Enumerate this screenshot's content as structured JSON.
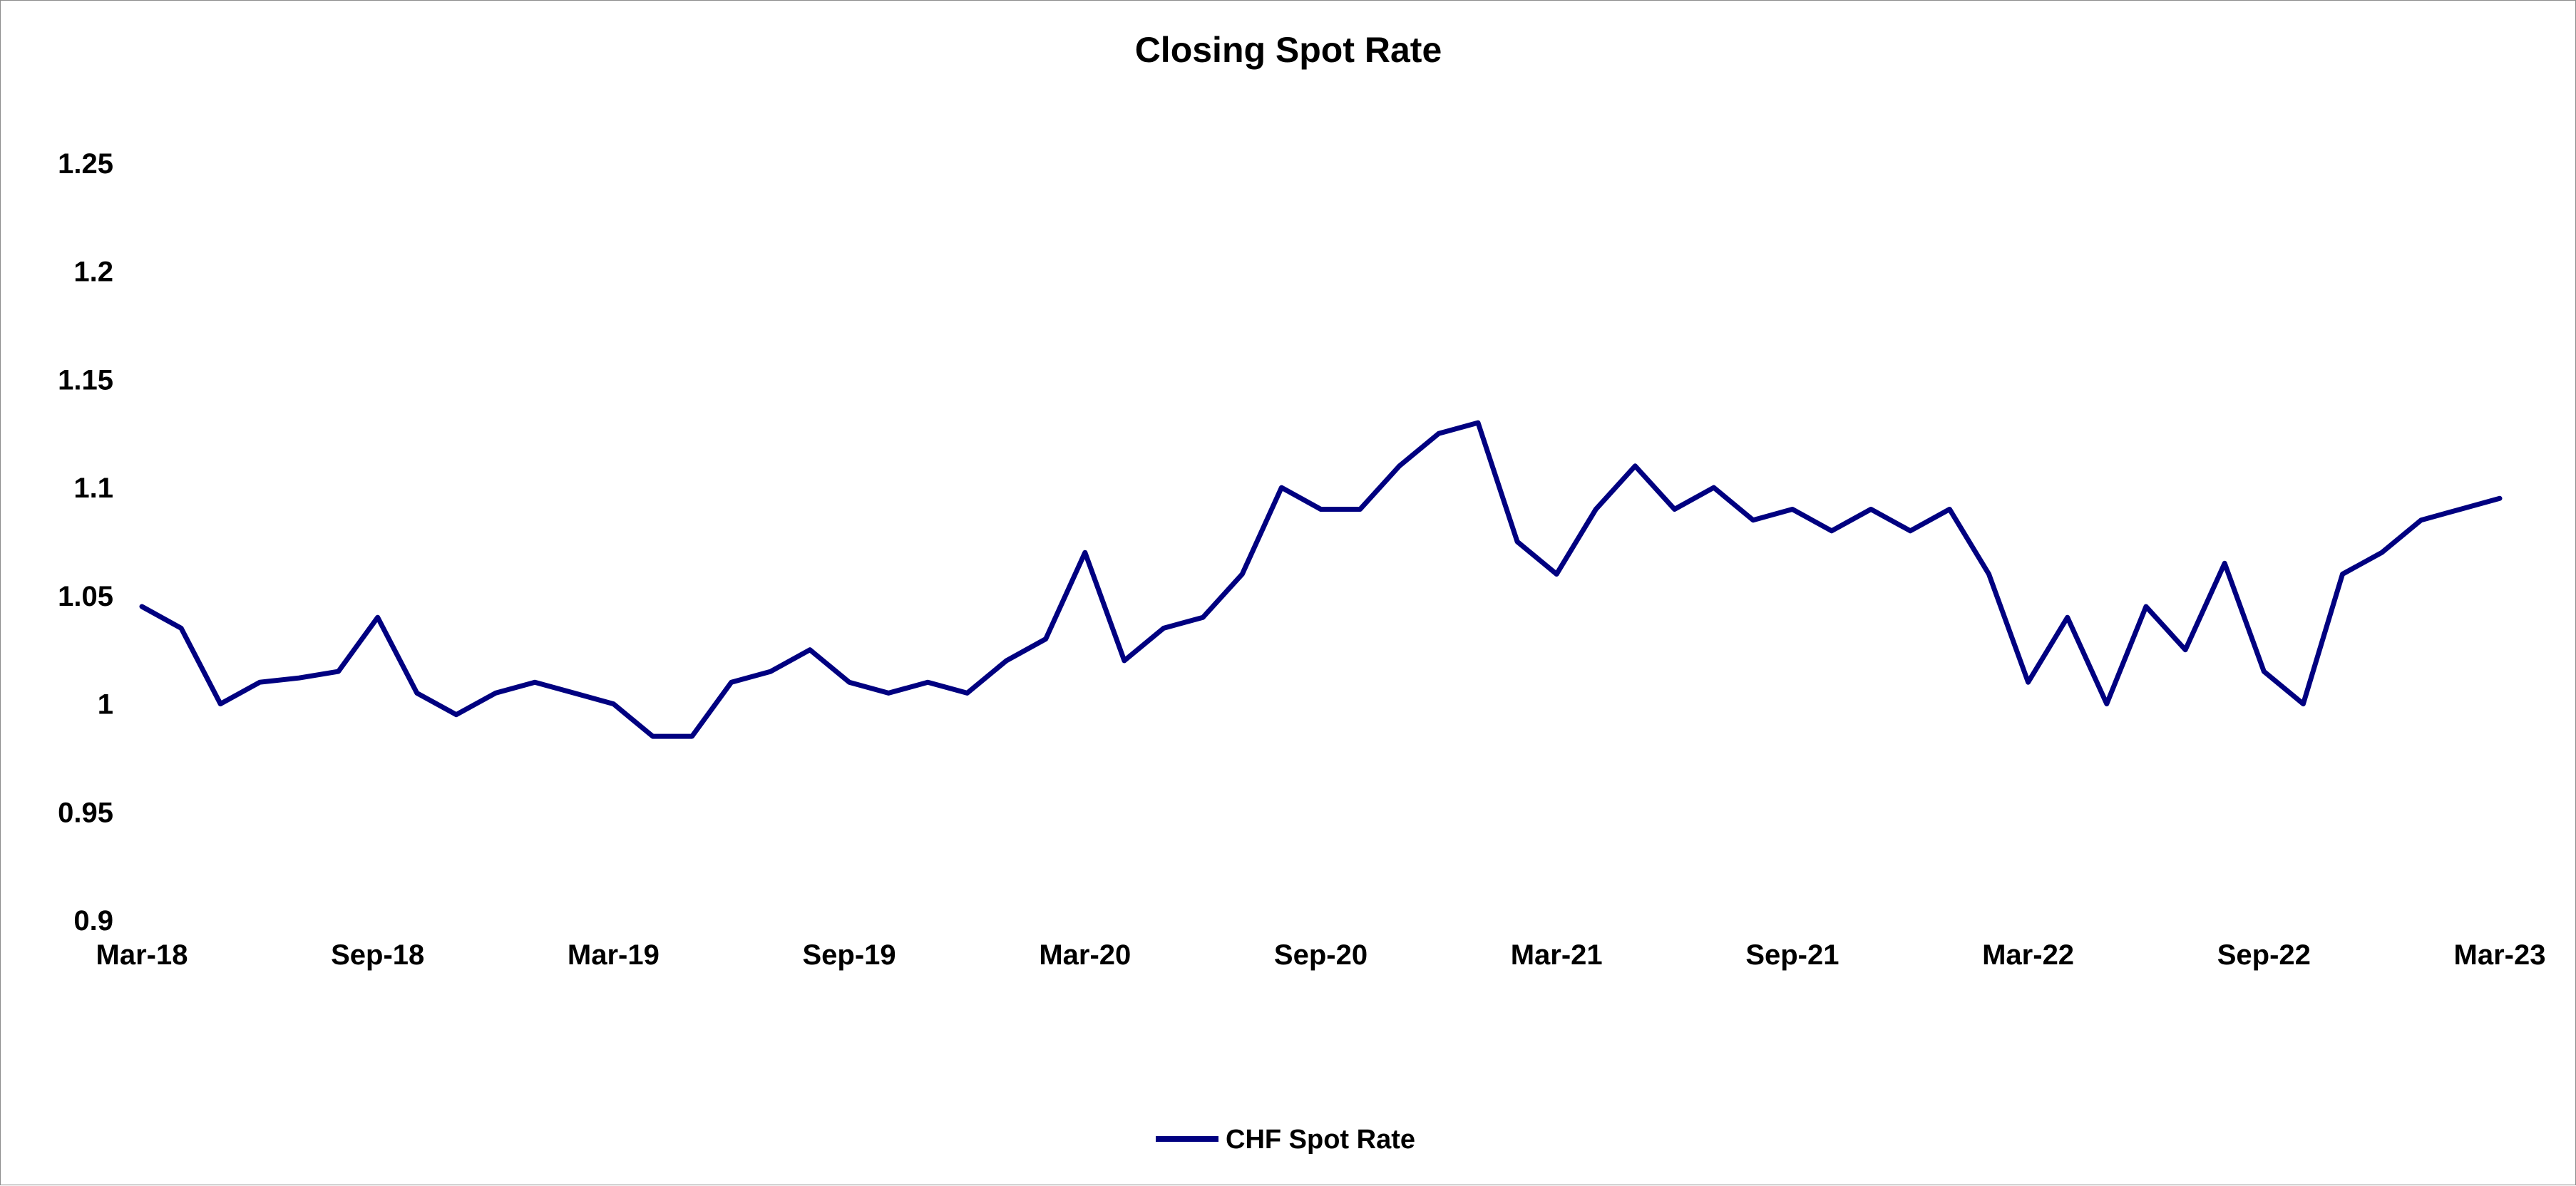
{
  "chart_data": {
    "type": "line",
    "title": "Closing Spot Rate",
    "xlabel": "",
    "ylabel": "",
    "ylim": [
      0.9,
      1.25
    ],
    "y_ticks": [
      "0.9",
      "0.95",
      "1",
      "1.05",
      "1.1",
      "1.15",
      "1.2",
      "1.25"
    ],
    "x_ticks": [
      "Mar-18",
      "Sep-18",
      "Mar-19",
      "Sep-19",
      "Mar-20",
      "Sep-20",
      "Mar-21",
      "Sep-21",
      "Mar-22",
      "Sep-22",
      "Mar-23"
    ],
    "xlim": [
      "Mar-18",
      "Mar-23"
    ],
    "grid": false,
    "legend_position": "bottom",
    "series": [
      {
        "name": "CHF Spot Rate",
        "color": "#000080",
        "x": [
          "Mar-18",
          "Apr-18",
          "May-18",
          "Jun-18",
          "Jul-18",
          "Aug-18",
          "Sep-18",
          "Oct-18",
          "Nov-18",
          "Dec-18",
          "Jan-19",
          "Feb-19",
          "Mar-19",
          "Apr-19",
          "May-19",
          "Jun-19",
          "Jul-19",
          "Aug-19",
          "Sep-19",
          "Oct-19",
          "Nov-19",
          "Dec-19",
          "Jan-20",
          "Feb-20",
          "Mar-20",
          "Apr-20",
          "May-20",
          "Jun-20",
          "Jul-20",
          "Aug-20",
          "Sep-20",
          "Oct-20",
          "Nov-20",
          "Dec-20",
          "Jan-21",
          "Feb-21",
          "Mar-21",
          "Apr-21",
          "May-21",
          "Jun-21",
          "Jul-21",
          "Aug-21",
          "Sep-21",
          "Oct-21",
          "Nov-21",
          "Dec-21",
          "Jan-22",
          "Feb-22",
          "Mar-22",
          "Apr-22",
          "May-22",
          "Jun-22",
          "Jul-22",
          "Aug-22",
          "Sep-22",
          "Oct-22",
          "Nov-22",
          "Dec-22",
          "Jan-23",
          "Feb-23",
          "Mar-23"
        ],
        "values": [
          1.045,
          1.035,
          1.0,
          1.01,
          1.012,
          1.015,
          1.04,
          1.005,
          0.995,
          1.005,
          1.01,
          1.005,
          1.0,
          0.985,
          0.985,
          1.01,
          1.015,
          1.025,
          1.01,
          1.005,
          1.01,
          1.005,
          1.02,
          1.03,
          1.07,
          1.02,
          1.035,
          1.04,
          1.06,
          1.1,
          1.09,
          1.09,
          1.11,
          1.125,
          1.13,
          1.075,
          1.06,
          1.09,
          1.11,
          1.09,
          1.1,
          1.085,
          1.09,
          1.08,
          1.09,
          1.08,
          1.09,
          1.06,
          1.01,
          1.04,
          1.0,
          1.045,
          1.025,
          1.065,
          1.015,
          1.0,
          1.06,
          1.07,
          1.085,
          1.09,
          1.095
        ]
      }
    ]
  }
}
